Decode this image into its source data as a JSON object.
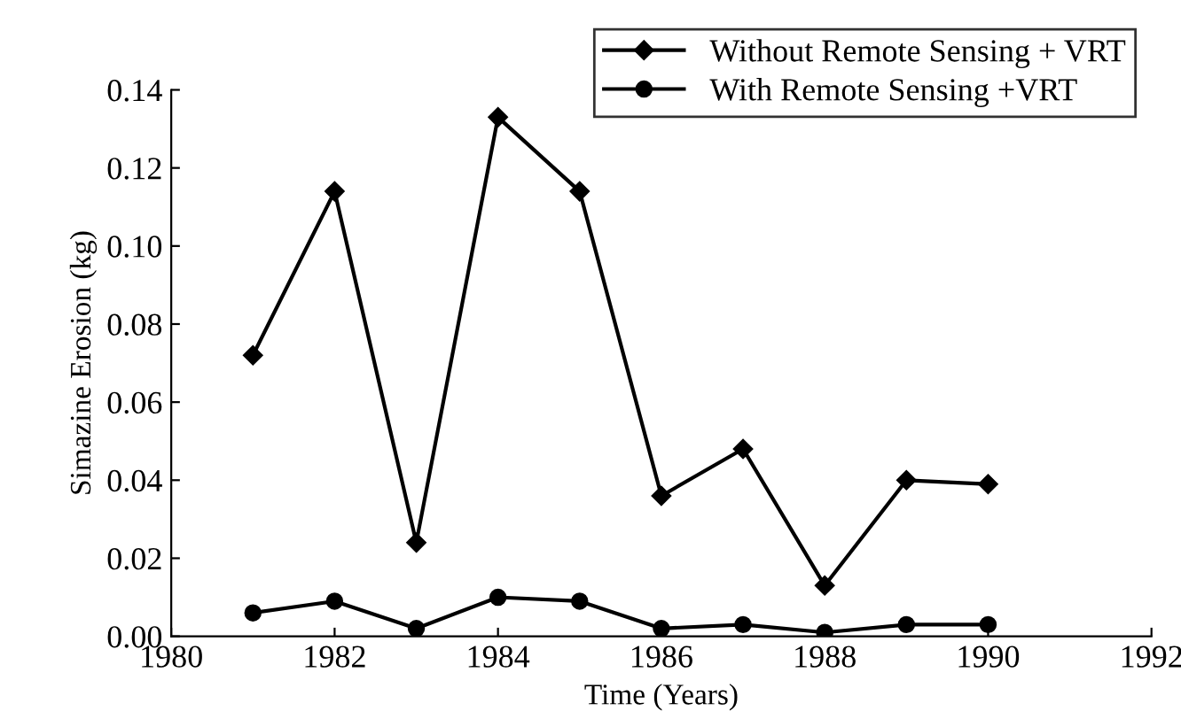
{
  "chart_data": {
    "type": "line",
    "xlabel": "Time (Years)",
    "ylabel": "Simazine Erosion (kg)",
    "x": [
      1981,
      1982,
      1983,
      1984,
      1985,
      1986,
      1987,
      1988,
      1989,
      1990
    ],
    "series": [
      {
        "name": "Without Remote Sensing + VRT",
        "color": "#000000",
        "marker": "diamond",
        "values": [
          0.072,
          0.114,
          0.024,
          0.133,
          0.114,
          0.036,
          0.048,
          0.013,
          0.04,
          0.039
        ]
      },
      {
        "name": "With Remote Sensing +VRT",
        "color": "#000000",
        "marker": "circle",
        "values": [
          0.006,
          0.009,
          0.002,
          0.01,
          0.009,
          0.002,
          0.003,
          0.001,
          0.003,
          0.003
        ]
      }
    ],
    "xlim": [
      1980,
      1992
    ],
    "xticks": [
      1980,
      1982,
      1984,
      1986,
      1988,
      1990,
      1992
    ],
    "ylim": [
      0,
      0.14
    ],
    "yticks": [
      {
        "value": 0,
        "label": "0.00"
      },
      {
        "value": 0.02,
        "label": "0.02"
      },
      {
        "value": 0.04,
        "label": "0.04"
      },
      {
        "value": 0.06,
        "label": "0.06"
      },
      {
        "value": 0.08,
        "label": "0.08"
      },
      {
        "value": 0.1,
        "label": "0.10"
      },
      {
        "value": 0.12,
        "label": "0.12"
      },
      {
        "value": 0.14,
        "label": "0.14"
      }
    ],
    "grid": false,
    "legend": "top right",
    "line_style": "solid"
  }
}
